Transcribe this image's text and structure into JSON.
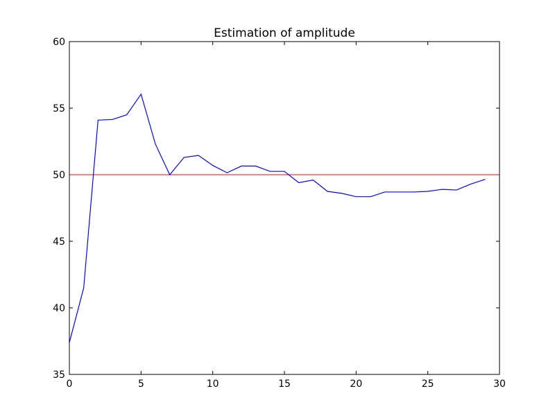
{
  "chart_data": {
    "type": "line",
    "title": "Estimation of amplitude",
    "xlabel": "",
    "ylabel": "",
    "xlim": [
      0,
      30
    ],
    "ylim": [
      35,
      60
    ],
    "x_ticks": [
      0,
      5,
      10,
      15,
      20,
      25,
      30
    ],
    "y_ticks": [
      35,
      40,
      45,
      50,
      55,
      60
    ],
    "grid": false,
    "legend": "none",
    "series": [
      {
        "color": "#0000ff",
        "x": [
          0,
          1,
          2,
          3,
          4,
          5,
          6,
          7,
          8,
          9,
          10,
          11,
          12,
          13,
          14,
          15,
          16,
          17,
          18,
          19,
          20,
          21,
          22,
          23,
          24,
          25,
          26,
          27,
          28,
          29
        ],
        "y": [
          37.4,
          41.5,
          54.1,
          54.15,
          54.5,
          56.05,
          52.3,
          50.0,
          51.3,
          51.45,
          50.7,
          50.15,
          50.65,
          50.65,
          50.25,
          50.25,
          49.4,
          49.6,
          48.75,
          48.6,
          48.35,
          48.35,
          48.7,
          48.7,
          48.7,
          48.75,
          48.9,
          48.85,
          49.3,
          49.65
        ]
      }
    ],
    "reference_lines": [
      {
        "type": "horizontal",
        "y": 50,
        "color": "#ff0000"
      }
    ]
  }
}
